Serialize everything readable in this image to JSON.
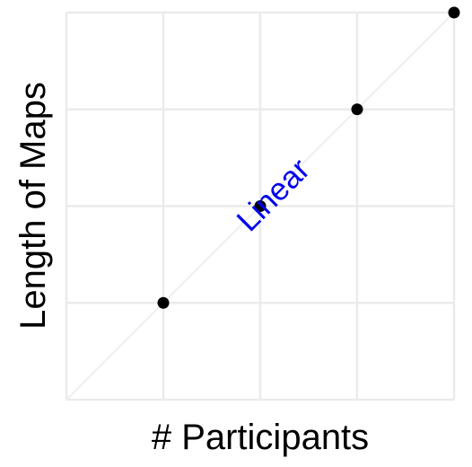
{
  "chart_data": {
    "type": "scatter",
    "xlabel": "# Participants",
    "ylabel": "Length of Maps",
    "xlim": [
      0,
      4
    ],
    "ylim": [
      0,
      4
    ],
    "grid": true,
    "x_ticks": [
      0,
      1,
      2,
      3,
      4
    ],
    "y_ticks": [
      0,
      1,
      2,
      3,
      4
    ],
    "points": [
      {
        "x": 1,
        "y": 1
      },
      {
        "x": 2,
        "y": 2
      },
      {
        "x": 3,
        "y": 3
      },
      {
        "x": 4,
        "y": 4
      }
    ],
    "reference_line": {
      "from": [
        0,
        0
      ],
      "to": [
        4,
        4
      ]
    },
    "annotation": {
      "text": "Linear",
      "x": 2.15,
      "y": 2.1,
      "color": "#0000ee"
    }
  }
}
